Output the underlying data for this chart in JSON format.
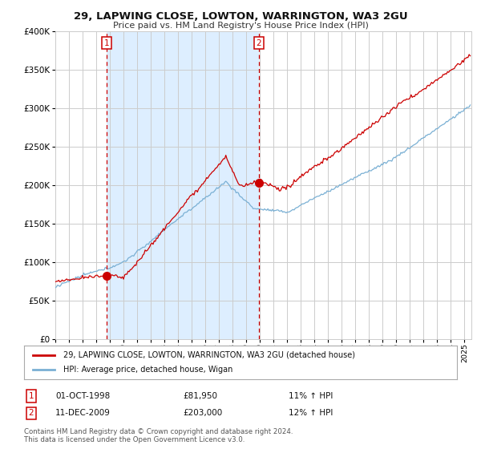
{
  "title": "29, LAPWING CLOSE, LOWTON, WARRINGTON, WA3 2GU",
  "subtitle": "Price paid vs. HM Land Registry's House Price Index (HPI)",
  "legend_line1": "29, LAPWING CLOSE, LOWTON, WARRINGTON, WA3 2GU (detached house)",
  "legend_line2": "HPI: Average price, detached house, Wigan",
  "annotation1_label": "1",
  "annotation1_date": "01-OCT-1998",
  "annotation1_price": "£81,950",
  "annotation1_hpi": "11% ↑ HPI",
  "annotation2_label": "2",
  "annotation2_date": "11-DEC-2009",
  "annotation2_price": "£203,000",
  "annotation2_hpi": "12% ↑ HPI",
  "footer": "Contains HM Land Registry data © Crown copyright and database right 2024.\nThis data is licensed under the Open Government Licence v3.0.",
  "red_color": "#cc0000",
  "blue_color": "#7ab0d4",
  "shade_color": "#ddeeff",
  "grid_color": "#cccccc",
  "background_color": "#ffffff",
  "point1_x": 1998.75,
  "point1_y": 81950,
  "point2_x": 2009.92,
  "point2_y": 203000,
  "vline1_x": 1998.75,
  "vline2_x": 2009.92,
  "ylim": [
    0,
    400000
  ],
  "xlim_start": 1995.0,
  "xlim_end": 2025.5
}
